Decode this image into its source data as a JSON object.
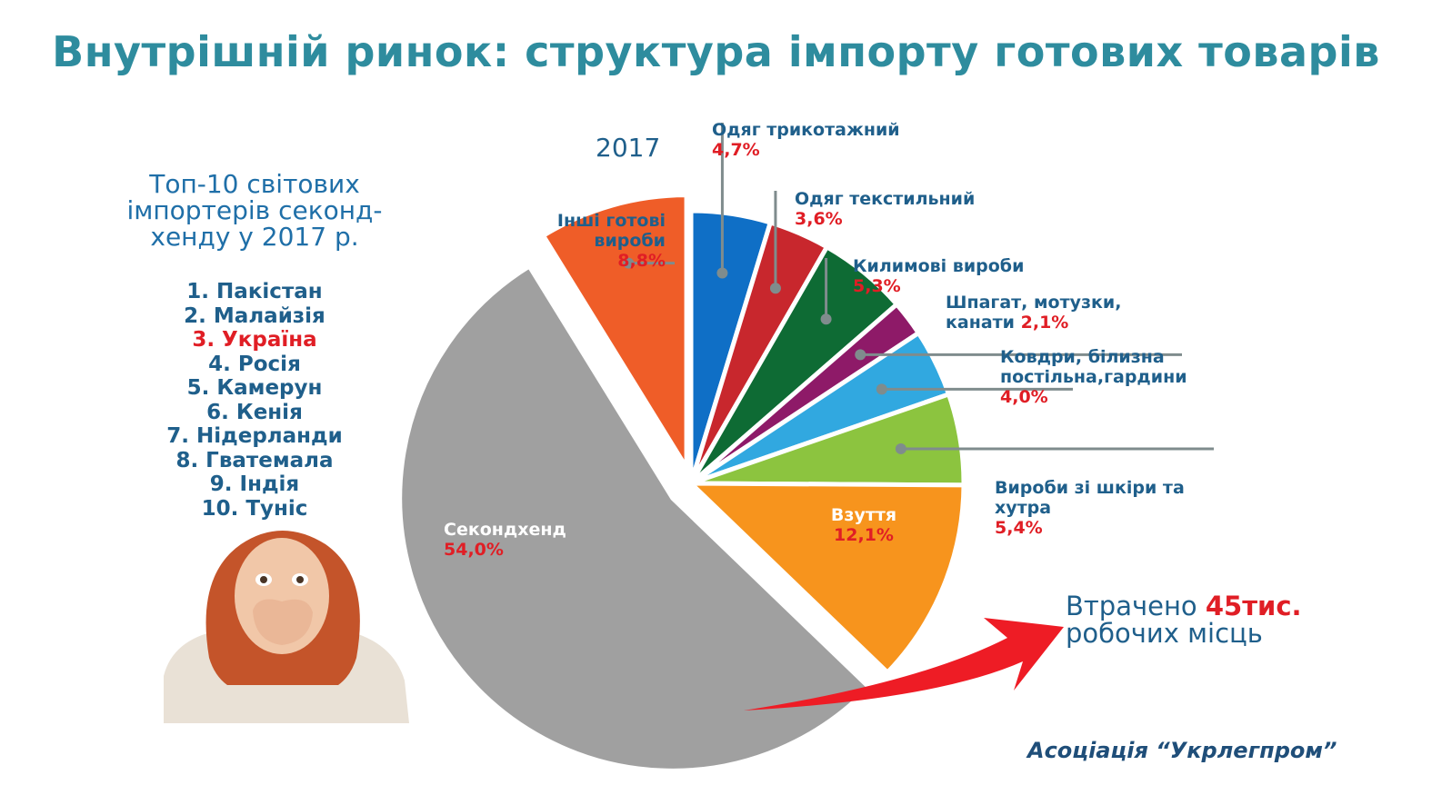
{
  "title": "Внутрішній ринок: структура імпорту готових товарів",
  "top10": {
    "title": "Топ-10 світових імпортерів секонд-хенду у 2017 р.",
    "items": [
      "1. Пакістан",
      "2. Малайзія",
      "3. Україна",
      "4. Росія",
      "5. Камерун",
      "6. Кенія",
      "7. Нідерланди",
      "8. Гватемала",
      "9. Індія",
      "10. Туніс"
    ],
    "highlight_color": "#e01e25"
  },
  "lost_jobs": {
    "prefix": "Втрачено ",
    "number": "45тис.",
    "suffix": "робочих місць"
  },
  "source": "Асоціація “Укрлегпром”",
  "chart_data": {
    "type": "pie",
    "title": "2017",
    "unit": "%",
    "slices": [
      {
        "label": "Одяг трикотажний",
        "value": 4.7,
        "value_text": "4,7%",
        "color": "#0f6fc6"
      },
      {
        "label": "Одяг текстильний",
        "value": 3.6,
        "value_text": "3,6%",
        "color": "#c8272d"
      },
      {
        "label": "Килимові вироби",
        "value": 5.3,
        "value_text": "5,3%",
        "color": "#0e6b34"
      },
      {
        "label": "Шпагат, мотузки, канати",
        "value": 2.1,
        "value_text": "2,1%",
        "color": "#8e1a68"
      },
      {
        "label": "Ковдри, білизна постільна,гардини",
        "value": 4.0,
        "value_text": "4,0%",
        "color": "#31a8e0"
      },
      {
        "label": "Вироби зі шкіри та хутра",
        "value": 5.4,
        "value_text": "5,4%",
        "color": "#8cc43f"
      },
      {
        "label": "Взуття",
        "value": 12.1,
        "value_text": "12,1%",
        "color": "#f7941d"
      },
      {
        "label": "Секондхенд",
        "value": 54.0,
        "value_text": "54,0%",
        "color": "#a0a0a0",
        "exploded": true
      },
      {
        "label": "Інші готові вироби",
        "value": 8.8,
        "value_text": "8,8%",
        "color": "#ef5d28",
        "exploded": true
      }
    ]
  }
}
